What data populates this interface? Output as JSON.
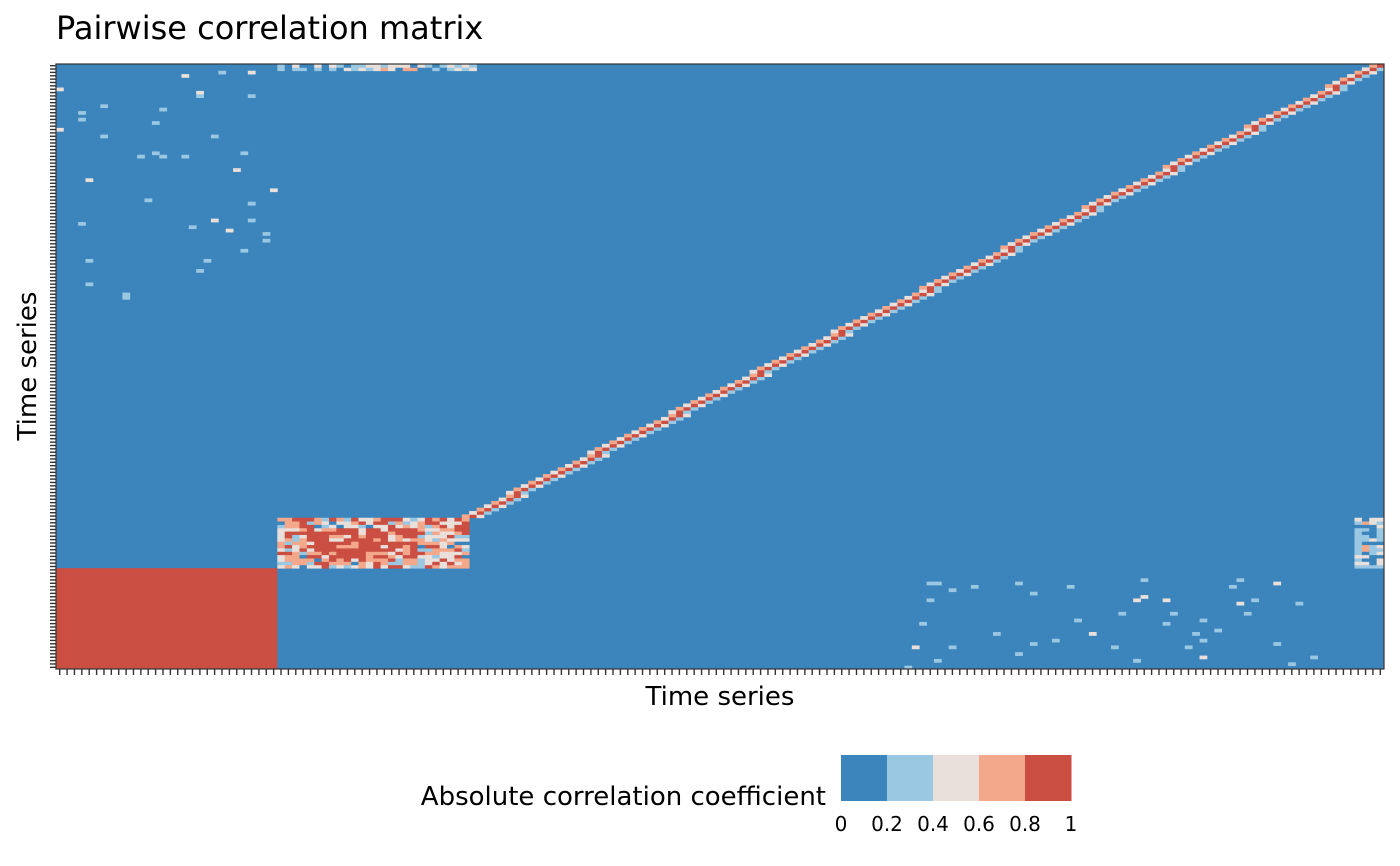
{
  "chart_data": {
    "type": "heatmap",
    "title": "Pairwise correlation matrix",
    "xlabel": "Time series",
    "ylabel": "Time series",
    "n": 180,
    "color_scale": {
      "title": "Absolute correlation coefficient",
      "breaks": [
        "0",
        "0.2",
        "0.4",
        "0.6",
        "0.8",
        "1"
      ],
      "bins": [
        {
          "range": [
            0.0,
            0.2
          ],
          "color": "#3b84bc"
        },
        {
          "range": [
            0.2,
            0.4
          ],
          "color": "#9ac7e1"
        },
        {
          "range": [
            0.4,
            0.6
          ],
          "color": "#e9dfdb"
        },
        {
          "range": [
            0.6,
            0.8
          ],
          "color": "#f4a88b"
        },
        {
          "range": [
            0.8,
            1.0
          ],
          "color": "#cb4e43"
        }
      ]
    },
    "blocks": [
      {
        "rows": [
          0,
          29
        ],
        "cols": [
          0,
          29
        ],
        "abs_corr": 0.9
      },
      {
        "rows": [
          30,
          44
        ],
        "cols": [
          30,
          55
        ],
        "abs_corr": 0.7,
        "pattern": "mixed"
      },
      {
        "rows": [
          30,
          44
        ],
        "cols": [
          0,
          29
        ],
        "abs_corr": 0.1
      },
      {
        "rows": [
          0,
          29
        ],
        "cols": [
          30,
          179
        ],
        "abs_corr": 0.1
      }
    ],
    "diagonal_band": {
      "from": [
        45,
        56
      ],
      "to": [
        179,
        179
      ],
      "abs_corr": 1.0
    },
    "legend_position": "bottom"
  }
}
